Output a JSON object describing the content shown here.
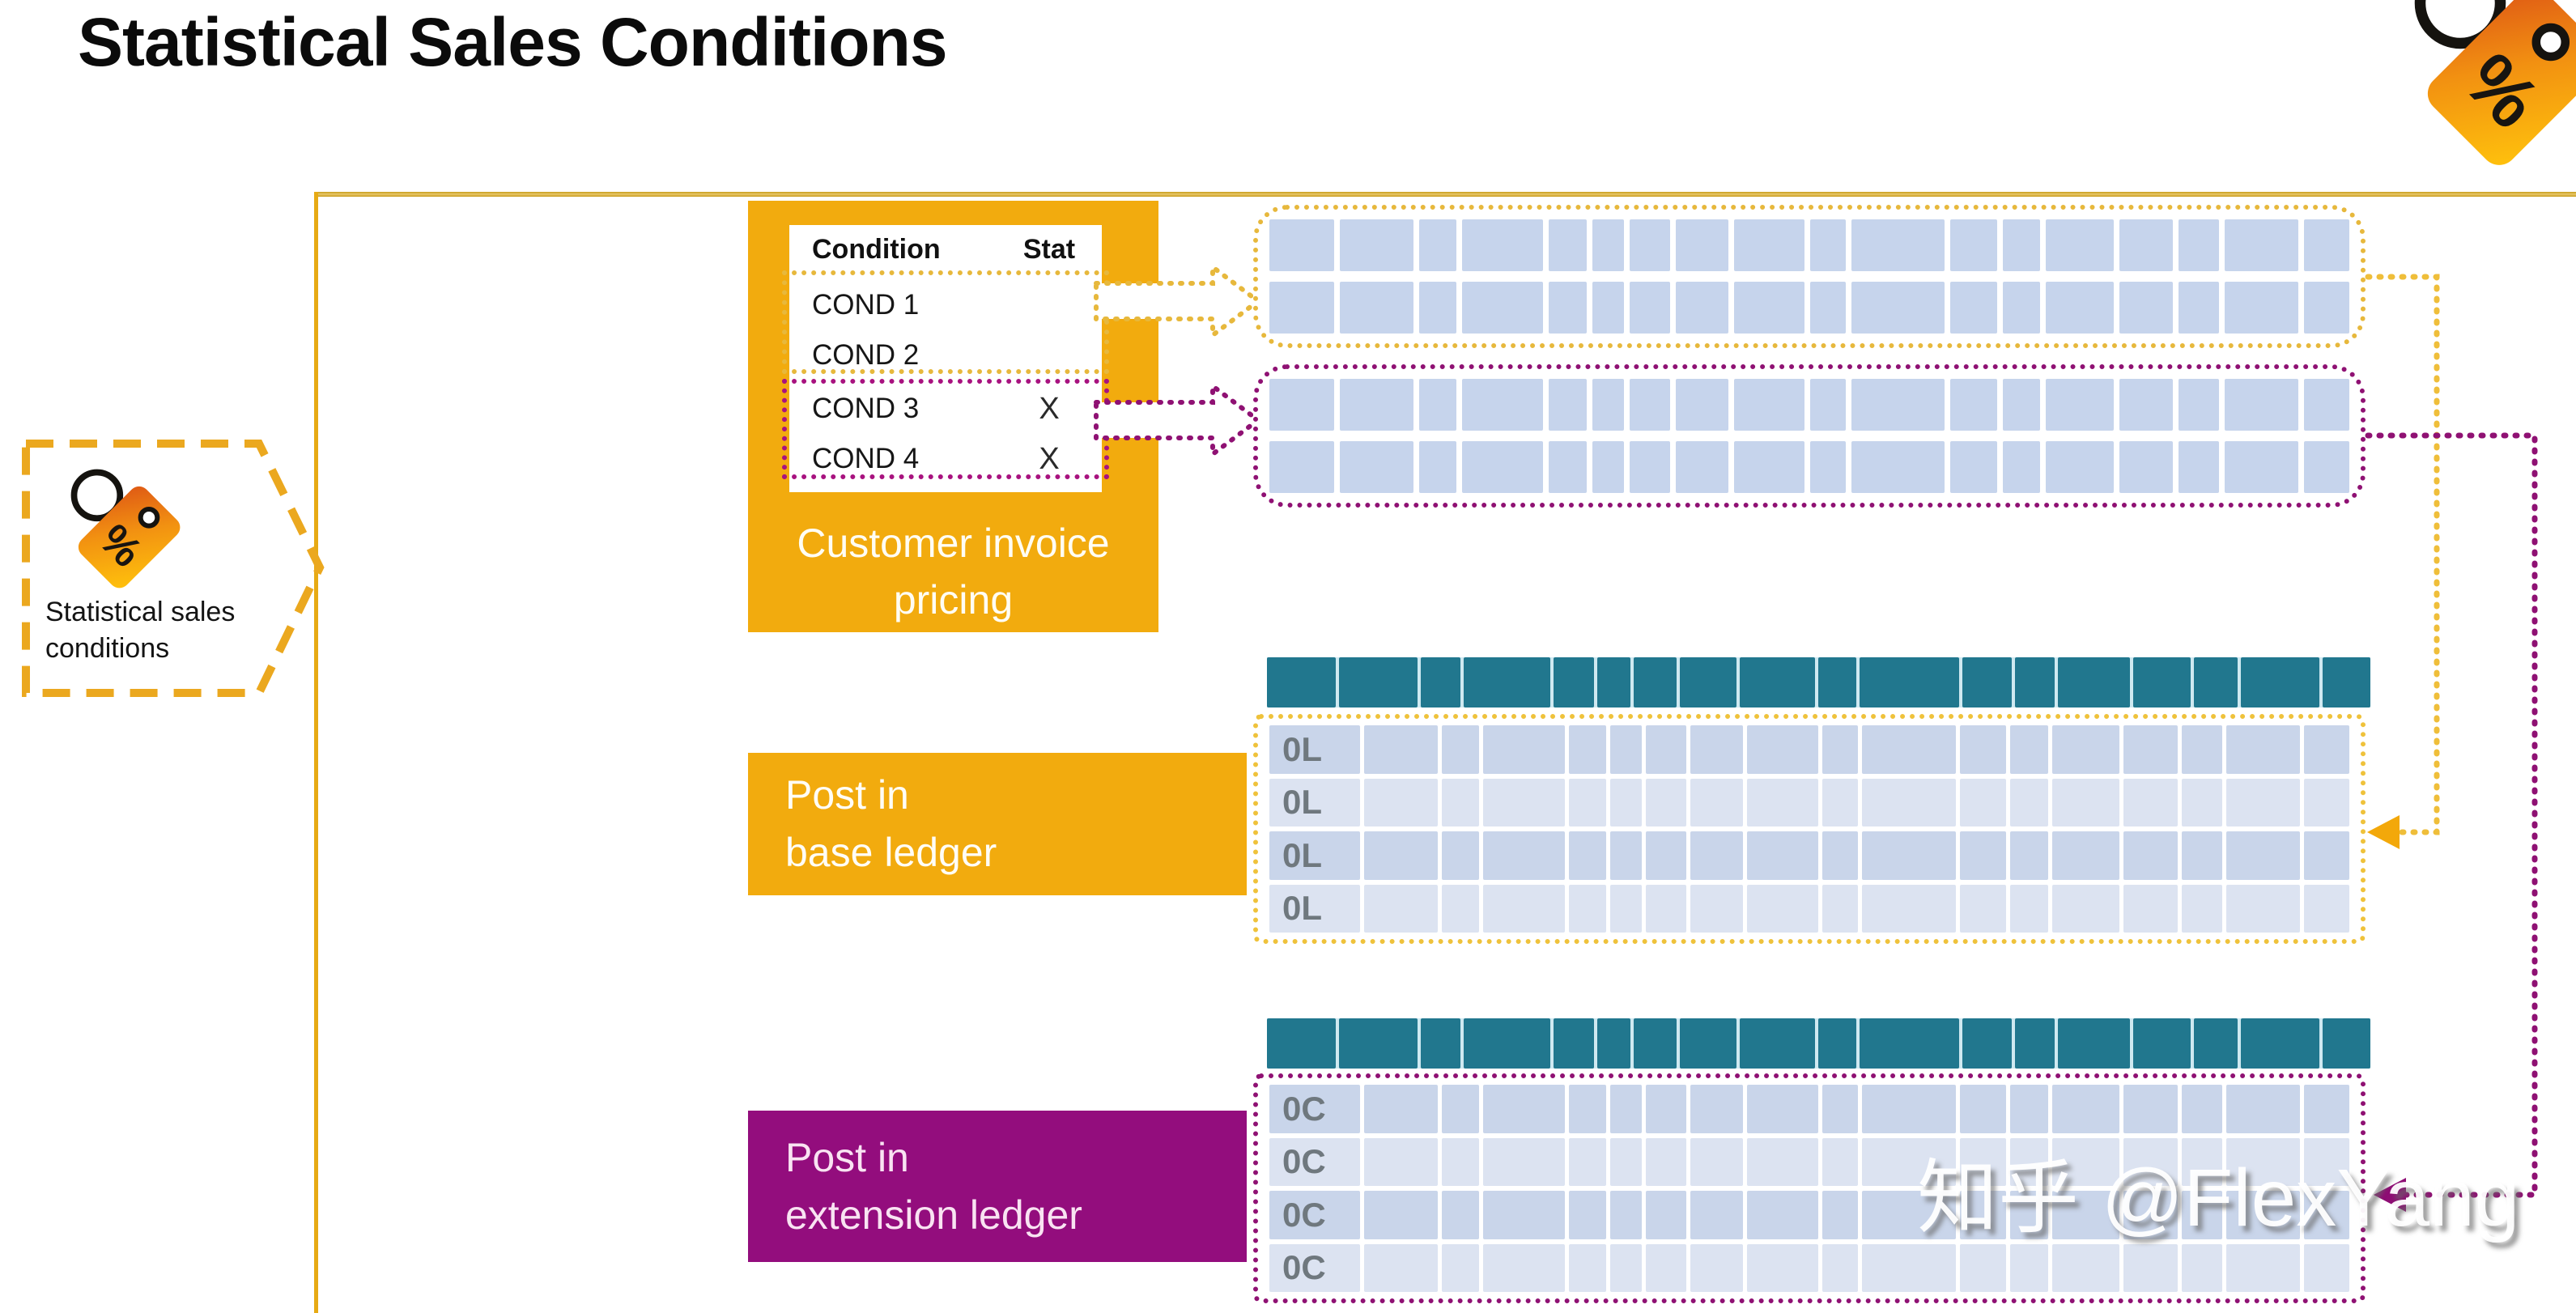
{
  "page": {
    "title": "Statistical Sales Conditions"
  },
  "badge": {
    "label": "Statistical sales conditions",
    "icon": "price-tag-percent-icon"
  },
  "corner_icon": {
    "icon": "price-tag-percent-icon"
  },
  "icons": {
    "percent_glyph": "%"
  },
  "invoice": {
    "caption_lines": [
      "Customer invoice",
      "pricing"
    ],
    "table": {
      "headers": [
        "Condition",
        "Stat"
      ],
      "rows": [
        {
          "condition": "COND 1",
          "stat": "",
          "group": "non-statistical"
        },
        {
          "condition": "COND 2",
          "stat": "",
          "group": "non-statistical"
        },
        {
          "condition": "COND 3",
          "stat": "X",
          "group": "statistical"
        },
        {
          "condition": "COND 4",
          "stat": "X",
          "group": "statistical"
        }
      ]
    }
  },
  "doc_strips": {
    "groups": [
      {
        "color": "yellow",
        "rows": 2
      },
      {
        "color": "purple",
        "rows": 2
      }
    ]
  },
  "base_ledger": {
    "box_lines": [
      "Post in",
      "base ledger"
    ],
    "row_labels": [
      "0L",
      "0L",
      "0L",
      "0L"
    ]
  },
  "extension_ledger": {
    "box_lines": [
      "Post in",
      "extension ledger"
    ],
    "row_labels": [
      "0C",
      "0C",
      "0C",
      "0C"
    ]
  },
  "watermark": "知乎 @FlexYang",
  "colors": {
    "gold": "#F2AB0E",
    "purple": "#930D7D",
    "teal_header": "#21778E",
    "cell_blue": "#C6D4EC",
    "row_dark": "#C9D5EA",
    "row_light": "#DCE3F1",
    "dotted_yellow": "#E7B83C",
    "dotted_purple": "#8F1173",
    "label_gray": "#6F787E",
    "frame_gold": "#E7AA14"
  },
  "layout": {
    "column_weights": [
      86,
      98,
      50,
      108,
      50,
      42,
      54,
      70,
      94,
      48,
      124,
      62,
      50,
      90,
      72,
      54,
      98,
      60
    ]
  }
}
